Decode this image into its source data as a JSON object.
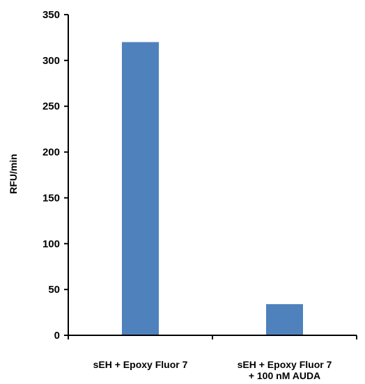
{
  "chart_data": {
    "type": "bar",
    "title": "",
    "xlabel": "",
    "ylabel": "RFU/min",
    "categories": [
      [
        "sEH + Epoxy Fluor 7"
      ],
      [
        "sEH + Epoxy Fluor 7",
        "+ 100 nM AUDA"
      ]
    ],
    "values": [
      320,
      34
    ],
    "ylim": [
      0,
      350
    ],
    "yticks": [
      0,
      50,
      100,
      150,
      200,
      250,
      300,
      350
    ],
    "grid": false,
    "legend": "none",
    "bar_color": "#4F81BD",
    "axis_color": "#000000"
  }
}
